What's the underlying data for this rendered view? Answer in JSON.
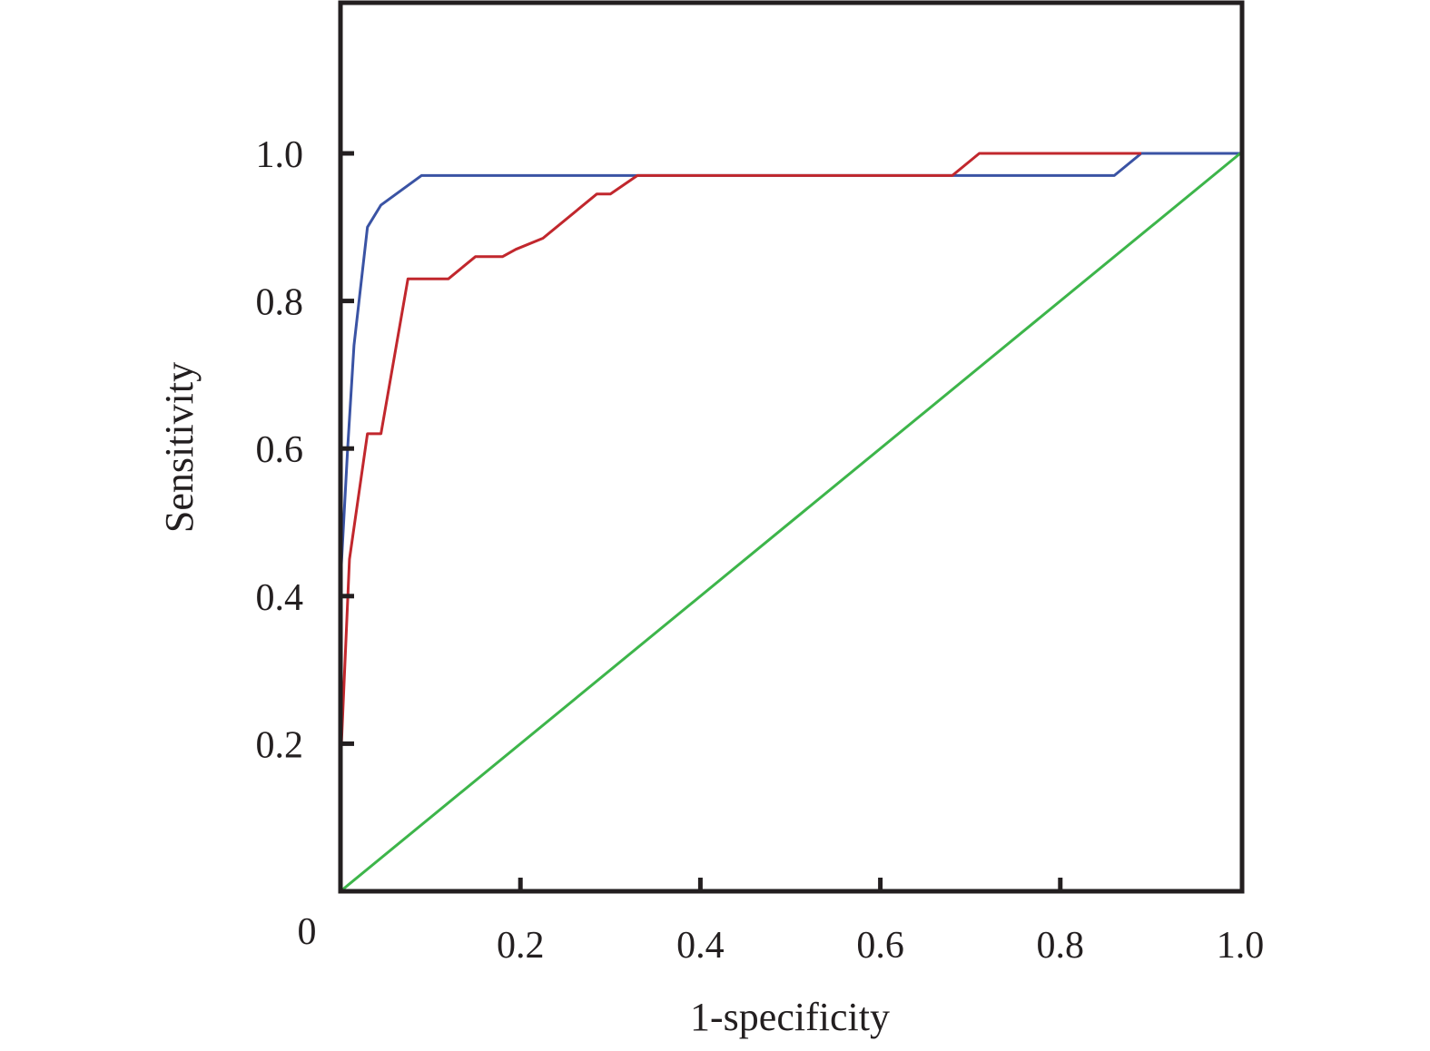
{
  "chart_data": {
    "type": "line",
    "title": "",
    "xlabel": "1-specificity",
    "ylabel": "Sensitivity",
    "xlim": [
      0,
      1.0
    ],
    "ylim": [
      0,
      1.2
    ],
    "origin_label": "0",
    "x_ticks": [
      {
        "value": 0.2,
        "label": "0.2"
      },
      {
        "value": 0.4,
        "label": "0.4"
      },
      {
        "value": 0.6,
        "label": "0.6"
      },
      {
        "value": 0.8,
        "label": "0.8"
      },
      {
        "value": 1.0,
        "label": "1.0"
      }
    ],
    "y_ticks": [
      {
        "value": 0.2,
        "label": "0.2"
      },
      {
        "value": 0.4,
        "label": "0.4"
      },
      {
        "value": 0.6,
        "label": "0.6"
      },
      {
        "value": 0.8,
        "label": "0.8"
      },
      {
        "value": 1.0,
        "label": "1.0"
      }
    ],
    "grid": false,
    "legend": "none",
    "series": [
      {
        "color": "#3a53a4",
        "points": [
          [
            0.0,
            0.42
          ],
          [
            0.008,
            0.6
          ],
          [
            0.015,
            0.74
          ],
          [
            0.03,
            0.9
          ],
          [
            0.045,
            0.93
          ],
          [
            0.09,
            0.97
          ],
          [
            0.86,
            0.97
          ],
          [
            0.89,
            1.0
          ],
          [
            1.0,
            1.0
          ]
        ]
      },
      {
        "color": "#c1272d",
        "points": [
          [
            0.0,
            0.17
          ],
          [
            0.01,
            0.45
          ],
          [
            0.03,
            0.62
          ],
          [
            0.045,
            0.62
          ],
          [
            0.075,
            0.83
          ],
          [
            0.12,
            0.83
          ],
          [
            0.15,
            0.86
          ],
          [
            0.18,
            0.86
          ],
          [
            0.195,
            0.87
          ],
          [
            0.225,
            0.885
          ],
          [
            0.285,
            0.945
          ],
          [
            0.3,
            0.945
          ],
          [
            0.33,
            0.97
          ],
          [
            0.68,
            0.97
          ],
          [
            0.71,
            1.0
          ],
          [
            0.89,
            1.0
          ]
        ]
      },
      {
        "color": "#3db54a",
        "points": [
          [
            0.0,
            0.0
          ],
          [
            1.0,
            1.0
          ]
        ]
      }
    ]
  }
}
